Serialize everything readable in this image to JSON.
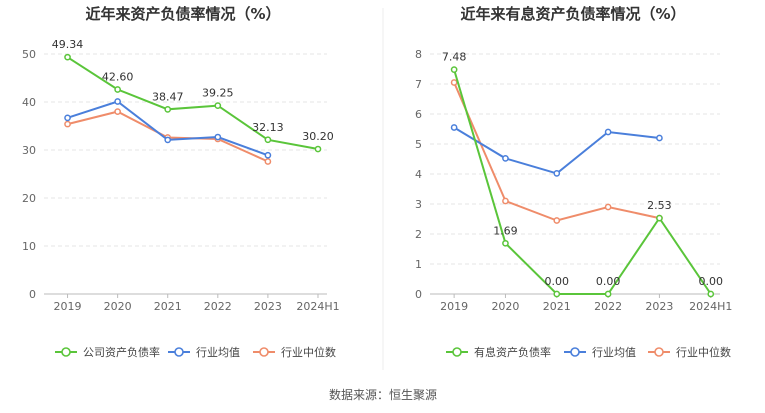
{
  "source": "数据来源：恒生聚源",
  "chart_data": [
    {
      "type": "line",
      "title": "近年来资产负债率情况（%）",
      "categories": [
        "2019",
        "2020",
        "2021",
        "2022",
        "2023",
        "2024H1"
      ],
      "ylim": [
        0,
        50
      ],
      "yticks": [
        0,
        10,
        20,
        30,
        40,
        50
      ],
      "grid": true,
      "legend_position": "bottom",
      "series": [
        {
          "name": "公司资产负债率",
          "color": "#5ac53a",
          "values": [
            49.34,
            42.6,
            38.47,
            39.25,
            32.13,
            30.2
          ],
          "data_labels": [
            "49.34",
            "42.60",
            "38.47",
            "39.25",
            "32.13",
            "30.20"
          ]
        },
        {
          "name": "行业均值",
          "color": "#4a7fdb",
          "values": [
            36.7,
            40.1,
            32.1,
            32.7,
            28.9,
            null
          ]
        },
        {
          "name": "行业中位数",
          "color": "#ef8c6a",
          "values": [
            35.4,
            38.0,
            32.6,
            32.3,
            27.6,
            null
          ]
        }
      ]
    },
    {
      "type": "line",
      "title": "近年来有息资产负债率情况（%）",
      "categories": [
        "2019",
        "2020",
        "2021",
        "2022",
        "2023",
        "2024H1"
      ],
      "ylim": [
        0,
        8
      ],
      "yticks": [
        0,
        1,
        2,
        3,
        4,
        5,
        6,
        7,
        8
      ],
      "grid": true,
      "legend_position": "bottom",
      "series": [
        {
          "name": "有息资产负债率",
          "color": "#5ac53a",
          "values": [
            7.48,
            1.69,
            0.0,
            0.0,
            2.53,
            0.0
          ],
          "data_labels": [
            "7.48",
            "1.69",
            "0.00",
            "0.00",
            "2.53",
            "0.00"
          ]
        },
        {
          "name": "行业均值",
          "color": "#4a7fdb",
          "values": [
            5.55,
            4.52,
            4.02,
            5.4,
            5.2,
            null
          ]
        },
        {
          "name": "行业中位数",
          "color": "#ef8c6a",
          "values": [
            7.05,
            3.1,
            2.45,
            2.9,
            2.53,
            null
          ]
        }
      ]
    }
  ]
}
